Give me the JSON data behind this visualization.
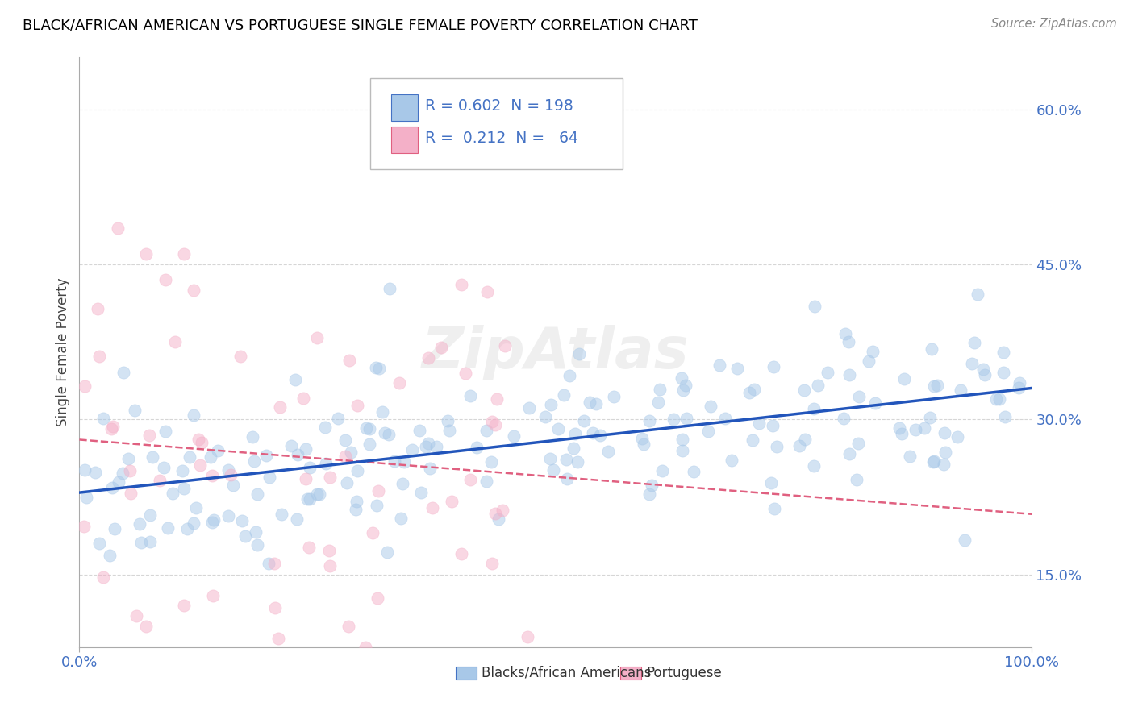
{
  "title": "BLACK/AFRICAN AMERICAN VS PORTUGUESE SINGLE FEMALE POVERTY CORRELATION CHART",
  "source": "Source: ZipAtlas.com",
  "ylabel": "Single Female Poverty",
  "ytick_labels": [
    "15.0%",
    "30.0%",
    "45.0%",
    "60.0%"
  ],
  "ytick_values": [
    0.15,
    0.3,
    0.45,
    0.6
  ],
  "legend_label1": "Blacks/African Americans",
  "legend_label2": "Portuguese",
  "R1": 0.602,
  "N1": 198,
  "R2": 0.212,
  "N2": 64,
  "color_blue": "#a8c8e8",
  "color_pink": "#f4b0c8",
  "color_blue_text": "#4472c4",
  "line_blue": "#2255bb",
  "line_pink": "#e06080",
  "background_color": "#ffffff",
  "grid_color": "#cccccc",
  "title_color": "#000000",
  "xlim": [
    0.0,
    1.0
  ],
  "ylim": [
    0.08,
    0.65
  ]
}
